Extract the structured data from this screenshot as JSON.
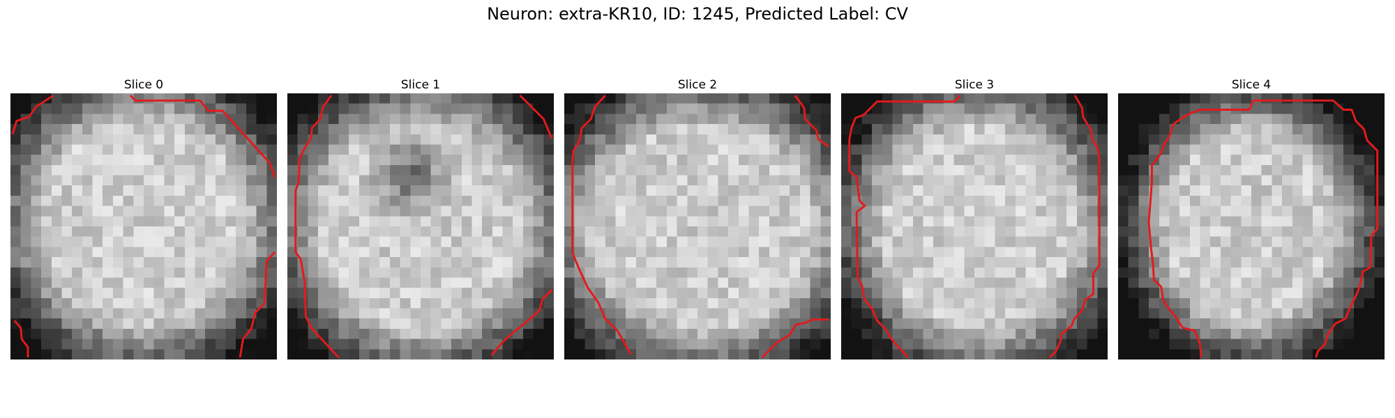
{
  "figure": {
    "title": "Neuron: extra-KR10, ID: 1245, Predicted Label: CV"
  },
  "overlay_color": "#e41a1c",
  "image_colormap": "grayscale",
  "slices": [
    {
      "title": "Slice 0"
    },
    {
      "title": "Slice 1"
    },
    {
      "title": "Slice 2"
    },
    {
      "title": "Slice 3"
    },
    {
      "title": "Slice 4"
    }
  ]
}
